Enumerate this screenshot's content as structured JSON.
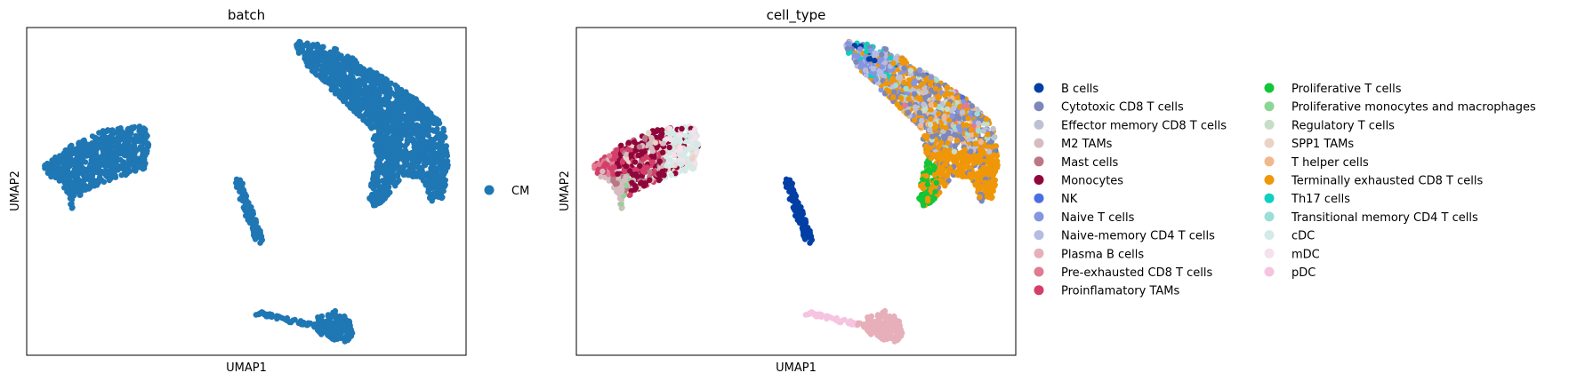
{
  "chart_data": [
    {
      "type": "scatter",
      "title": "batch",
      "xlabel": "UMAP1",
      "ylabel": "UMAP2",
      "xlim": [
        0,
        10
      ],
      "ylim": [
        0,
        10
      ],
      "grid": false,
      "legend_placement": "right",
      "series": [
        {
          "name": "CM",
          "color": "#1f77b4"
        }
      ]
    },
    {
      "type": "scatter",
      "title": "cell_type",
      "xlabel": "UMAP1",
      "ylabel": "UMAP2",
      "xlim": [
        0,
        10
      ],
      "ylim": [
        0,
        10
      ],
      "grid": false,
      "legend_placement": "right",
      "series": [
        {
          "name": "B cells",
          "color": "#023fa5"
        },
        {
          "name": "Cytotoxic CD8 T cells",
          "color": "#7d87b9"
        },
        {
          "name": "Effector memory CD8 T cells",
          "color": "#bec1d4"
        },
        {
          "name": "M2 TAMs",
          "color": "#d6bcc0"
        },
        {
          "name": "Mast cells",
          "color": "#bb7784"
        },
        {
          "name": "Monocytes",
          "color": "#8e063b"
        },
        {
          "name": "NK",
          "color": "#4a6fe3"
        },
        {
          "name": "Naive T cells",
          "color": "#8595e1"
        },
        {
          "name": "Naive-memory CD4 T cells",
          "color": "#b5bbe3"
        },
        {
          "name": "Plasma B cells",
          "color": "#e6afb9"
        },
        {
          "name": "Pre-exhausted CD8 T cells",
          "color": "#e07b91"
        },
        {
          "name": "Proinflamatory TAMs",
          "color": "#d33f6a"
        },
        {
          "name": "Proliferative T cells",
          "color": "#11c638"
        },
        {
          "name": "Proliferative monocytes and macrophages",
          "color": "#8dd593"
        },
        {
          "name": "Regulatory T cells",
          "color": "#c6dec7"
        },
        {
          "name": "SPP1 TAMs",
          "color": "#ead3c6"
        },
        {
          "name": "T helper cells",
          "color": "#f0b98d"
        },
        {
          "name": "Terminally exhausted CD8 T cells",
          "color": "#ef9708"
        },
        {
          "name": "Th17 cells",
          "color": "#0fcfc0"
        },
        {
          "name": "Transitional memory CD4 T cells",
          "color": "#9cded6"
        },
        {
          "name": "cDC",
          "color": "#d5eae7"
        },
        {
          "name": "mDC",
          "color": "#f3e1eb"
        },
        {
          "name": "pDC",
          "color": "#f6c4e1"
        }
      ]
    }
  ]
}
